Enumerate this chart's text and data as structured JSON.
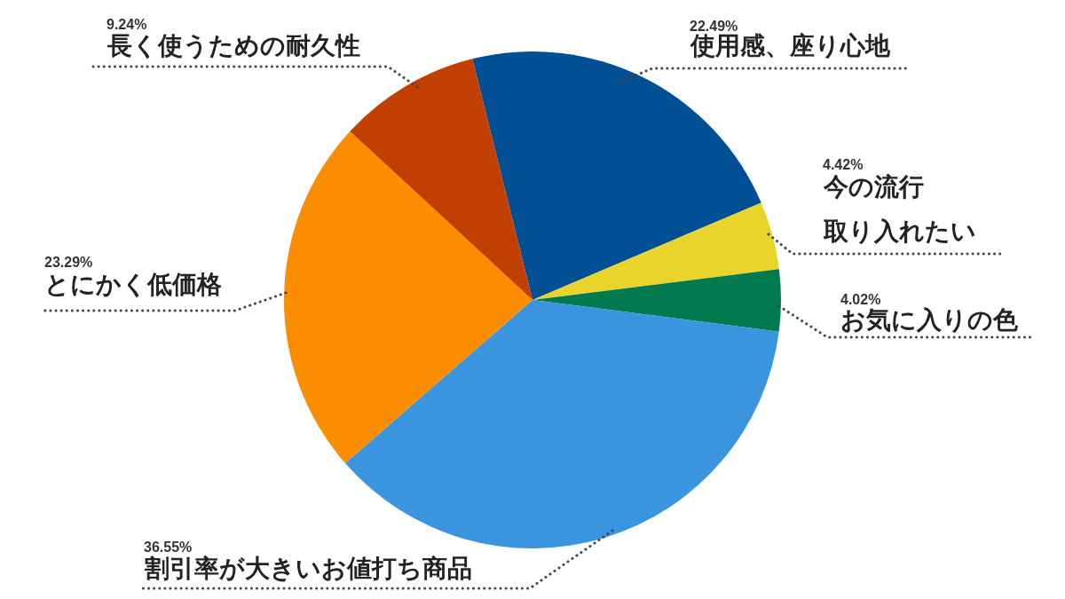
{
  "chart_data": {
    "type": "pie",
    "categories": [
      "使用感、座り心地",
      "今の流行取り入れたい",
      "お気に入りの色",
      "割引率が大きいお値打ち商品",
      "とにかく低価格",
      "長く使うための耐久性"
    ],
    "values": [
      22.49,
      4.42,
      4.02,
      36.55,
      23.29,
      9.24
    ],
    "value_labels": [
      "22.49%",
      "4.42%",
      "4.02%",
      "36.55%",
      "23.29%",
      "9.24%"
    ],
    "colors": [
      "#024f94",
      "#e8d42a",
      "#007a4e",
      "#3a94de",
      "#fb8d00",
      "#c13f00"
    ]
  }
}
